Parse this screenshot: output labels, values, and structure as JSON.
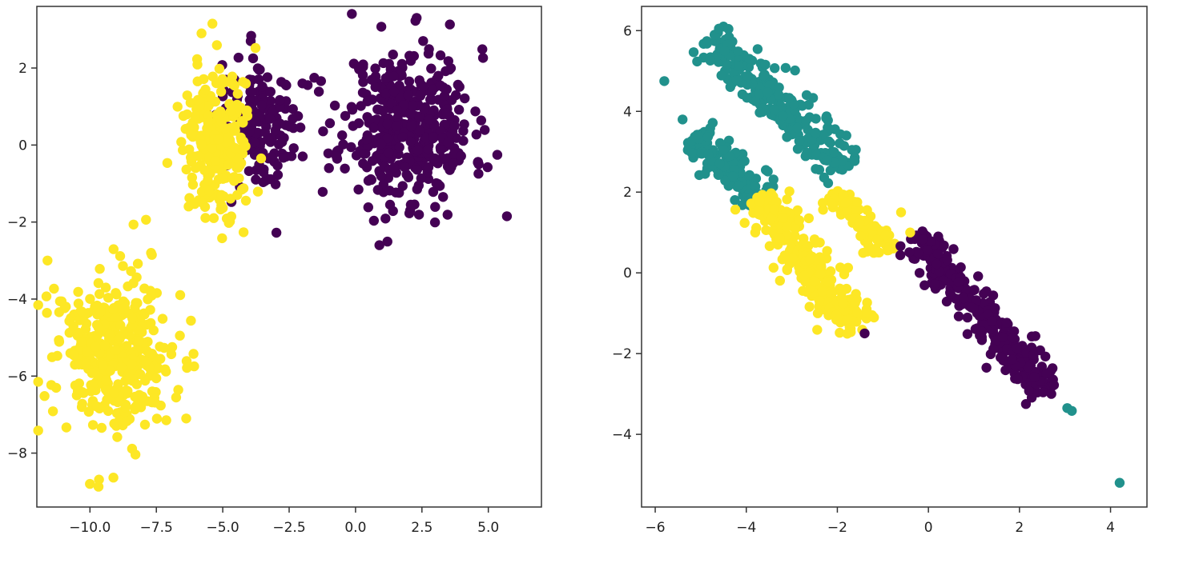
{
  "chart_data": [
    {
      "type": "scatter",
      "title": "",
      "xlabel": "",
      "ylabel": "",
      "xlim": [
        -12.0,
        7.0
      ],
      "ylim": [
        -9.4,
        3.6
      ],
      "grid": false,
      "x_ticks": [
        -10.0,
        -7.5,
        -5.0,
        -2.5,
        0.0,
        2.5,
        5.0
      ],
      "x_tick_labels": [
        "−10.0",
        "−7.5",
        "−5.0",
        "−2.5",
        "0.0",
        "2.5",
        "5.0"
      ],
      "y_ticks": [
        2,
        0,
        -2,
        -4,
        -6,
        -8
      ],
      "y_tick_labels": [
        "2",
        "0",
        "−2",
        "−4",
        "−6",
        "−8"
      ],
      "clusters": [
        {
          "name": "",
          "color": "#440154",
          "center": [
            2.0,
            0.5
          ],
          "spread": [
            1.2,
            1.0
          ],
          "count": 420,
          "seed": 11
        },
        {
          "name": "",
          "color": "#440154",
          "center": [
            -3.5,
            0.5
          ],
          "spread": [
            0.8,
            0.9
          ],
          "count": 160,
          "seed": 12
        },
        {
          "name": "",
          "color": "#fde725",
          "center": [
            -5.2,
            0.0
          ],
          "spread": [
            0.65,
            0.95
          ],
          "count": 260,
          "seed": 13
        },
        {
          "name": "",
          "color": "#fde725",
          "center": [
            -9.0,
            -5.4
          ],
          "spread": [
            1.1,
            1.0
          ],
          "count": 420,
          "seed": 14
        }
      ],
      "extra_points": [
        {
          "color": "#440154",
          "points": [
            [
              5.7,
              -1.85
            ],
            [
              2.3,
              3.3
            ],
            [
              0.9,
              -2.6
            ],
            [
              -2.0,
              1.6
            ],
            [
              -1.0,
              -0.6
            ]
          ]
        },
        {
          "color": "#fde725",
          "points": [
            [
              -5.8,
              2.9
            ],
            [
              -11.6,
              -3.0
            ],
            [
              -10.0,
              -8.8
            ],
            [
              -7.7,
              -2.8
            ]
          ]
        }
      ]
    },
    {
      "type": "scatter",
      "title": "",
      "xlabel": "",
      "ylabel": "",
      "xlim": [
        -6.3,
        4.8
      ],
      "ylim": [
        -5.8,
        6.6
      ],
      "grid": false,
      "x_ticks": [
        -6,
        -4,
        -2,
        0,
        2,
        4
      ],
      "x_tick_labels": [
        "−6",
        "−4",
        "−2",
        "0",
        "2",
        "4"
      ],
      "y_ticks": [
        6,
        4,
        2,
        0,
        -2,
        -4
      ],
      "y_tick_labels": [
        "6",
        "4",
        "2",
        "0",
        "−2",
        "−4"
      ],
      "elongated_clusters": [
        {
          "name": "",
          "color": "#21918c",
          "start": [
            -4.8,
            5.8
          ],
          "end": [
            -1.8,
            2.6
          ],
          "width": 0.25,
          "count": 260,
          "seed": 21
        },
        {
          "name": "",
          "color": "#21918c",
          "start": [
            -5.1,
            3.4
          ],
          "end": [
            -3.7,
            1.8
          ],
          "width": 0.22,
          "count": 150,
          "seed": 22
        },
        {
          "name": "",
          "color": "#fde725",
          "start": [
            -3.7,
            1.9
          ],
          "end": [
            -1.6,
            -1.5
          ],
          "width": 0.25,
          "count": 260,
          "seed": 23
        },
        {
          "name": "",
          "color": "#fde725",
          "start": [
            -2.1,
            2.0
          ],
          "end": [
            -0.9,
            0.5
          ],
          "width": 0.2,
          "count": 90,
          "seed": 24
        },
        {
          "name": "",
          "color": "#440154",
          "start": [
            -0.3,
            0.9
          ],
          "end": [
            2.6,
            -2.9
          ],
          "width": 0.2,
          "count": 300,
          "seed": 25
        }
      ],
      "extra_points": [
        {
          "color": "#21918c",
          "points": [
            [
              -5.8,
              4.75
            ],
            [
              4.2,
              -5.2
            ],
            [
              3.05,
              -3.35
            ],
            [
              3.15,
              -3.42
            ],
            [
              -4.5,
              6.1
            ],
            [
              -4.6,
              6.05
            ],
            [
              -5.4,
              3.8
            ]
          ]
        },
        {
          "color": "#440154",
          "points": [
            [
              -1.4,
              -1.5
            ],
            [
              2.7,
              -3.0
            ]
          ]
        },
        {
          "color": "#fde725",
          "points": [
            [
              -0.6,
              1.5
            ],
            [
              -0.4,
              1.0
            ]
          ]
        }
      ]
    }
  ]
}
